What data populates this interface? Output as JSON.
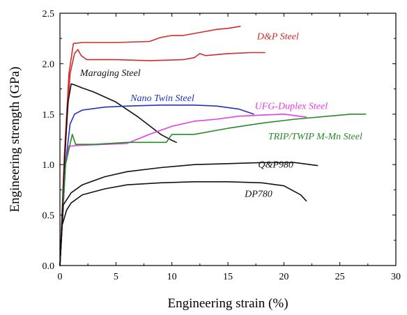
{
  "chart_data": {
    "type": "line",
    "title": "",
    "xlabel": "Engineering strain (%)",
    "ylabel": "Engineering strength (GPa)",
    "xlim": [
      0,
      30
    ],
    "ylim": [
      0.0,
      2.5
    ],
    "x_ticks": [
      "0",
      "5",
      "10",
      "15",
      "20",
      "25",
      "30"
    ],
    "y_ticks": [
      "0.0",
      "0.5",
      "1.0",
      "1.5",
      "2.0",
      "2.5"
    ],
    "grid": false,
    "legend": "inline labels",
    "series": [
      {
        "name": "D&P Steel",
        "color": "#d42a2a",
        "label_at": [
          17.6,
          2.24
        ],
        "points": [
          [
            0,
            0
          ],
          [
            0.4,
            1.1
          ],
          [
            0.8,
            1.9
          ],
          [
            1.2,
            2.2
          ],
          [
            2,
            2.21
          ],
          [
            5,
            2.21
          ],
          [
            8,
            2.22
          ],
          [
            9,
            2.26
          ],
          [
            10,
            2.28
          ],
          [
            11,
            2.28
          ],
          [
            12,
            2.3
          ],
          [
            13,
            2.32
          ],
          [
            14,
            2.34
          ],
          [
            15,
            2.35
          ],
          [
            16.1,
            2.37
          ]
        ]
      },
      {
        "name": "D&P Steel",
        "color": "#d42a2a",
        "label_at": null,
        "points": [
          [
            0,
            0
          ],
          [
            0.5,
            1.2
          ],
          [
            0.9,
            1.9
          ],
          [
            1.3,
            2.1
          ],
          [
            1.6,
            2.14
          ],
          [
            1.9,
            2.08
          ],
          [
            2.4,
            2.04
          ],
          [
            5,
            2.04
          ],
          [
            8,
            2.03
          ],
          [
            11,
            2.04
          ],
          [
            12,
            2.06
          ],
          [
            12.5,
            2.1
          ],
          [
            13,
            2.08
          ],
          [
            15,
            2.1
          ],
          [
            17,
            2.11
          ],
          [
            18.3,
            2.11
          ]
        ]
      },
      {
        "name": "Maraging Steel",
        "color": "#111111",
        "label_at": [
          1.8,
          1.88
        ],
        "points": [
          [
            0,
            0
          ],
          [
            0.4,
            1.0
          ],
          [
            0.7,
            1.6
          ],
          [
            1.0,
            1.8
          ],
          [
            1.3,
            1.79
          ],
          [
            2,
            1.76
          ],
          [
            3,
            1.72
          ],
          [
            5,
            1.62
          ],
          [
            7,
            1.47
          ],
          [
            9,
            1.3
          ],
          [
            10,
            1.24
          ],
          [
            10.4,
            1.22
          ]
        ]
      },
      {
        "name": "Nano Twin Steel",
        "color": "#2233bb",
        "label_at": [
          6.3,
          1.63
        ],
        "points": [
          [
            0,
            0
          ],
          [
            0.5,
            1.0
          ],
          [
            0.9,
            1.4
          ],
          [
            1.3,
            1.5
          ],
          [
            2,
            1.54
          ],
          [
            4,
            1.57
          ],
          [
            6,
            1.58
          ],
          [
            9,
            1.59
          ],
          [
            12,
            1.59
          ],
          [
            14,
            1.58
          ],
          [
            16,
            1.55
          ],
          [
            17.3,
            1.5
          ]
        ]
      },
      {
        "name": "UFG-Duplex Steel",
        "color": "#e63ce6",
        "label_at": [
          17.4,
          1.55
        ],
        "points": [
          [
            0,
            0
          ],
          [
            0.5,
            1.0
          ],
          [
            0.8,
            1.18
          ],
          [
            1.5,
            1.19
          ],
          [
            4,
            1.2
          ],
          [
            6,
            1.21
          ],
          [
            8,
            1.3
          ],
          [
            10,
            1.38
          ],
          [
            12,
            1.43
          ],
          [
            14,
            1.45
          ],
          [
            16,
            1.48
          ],
          [
            18,
            1.49
          ],
          [
            20,
            1.5
          ],
          [
            22,
            1.47
          ]
        ]
      },
      {
        "name": "TRIP/TWIP M-Mn Steel",
        "color": "#2a8a2a",
        "label_at": [
          18.6,
          1.25
        ],
        "points": [
          [
            0,
            0
          ],
          [
            0.5,
            1.0
          ],
          [
            0.9,
            1.2
          ],
          [
            1.1,
            1.3
          ],
          [
            1.4,
            1.2
          ],
          [
            3,
            1.2
          ],
          [
            6,
            1.22
          ],
          [
            9.5,
            1.22
          ],
          [
            10,
            1.3
          ],
          [
            12,
            1.3
          ],
          [
            15,
            1.36
          ],
          [
            18,
            1.41
          ],
          [
            21,
            1.45
          ],
          [
            24,
            1.48
          ],
          [
            26,
            1.5
          ],
          [
            27.3,
            1.5
          ]
        ]
      },
      {
        "name": "Q&P980",
        "color": "#111111",
        "label_at": [
          17.7,
          0.97
        ],
        "points": [
          [
            0,
            0
          ],
          [
            0.3,
            0.6
          ],
          [
            1,
            0.72
          ],
          [
            2,
            0.8
          ],
          [
            4,
            0.88
          ],
          [
            6,
            0.93
          ],
          [
            9,
            0.97
          ],
          [
            12,
            1.0
          ],
          [
            15,
            1.01
          ],
          [
            18,
            1.02
          ],
          [
            21,
            1.02
          ],
          [
            23,
            0.99
          ]
        ]
      },
      {
        "name": "DP780",
        "color": "#111111",
        "label_at": [
          16.5,
          0.68
        ],
        "points": [
          [
            0,
            0
          ],
          [
            0.2,
            0.4
          ],
          [
            0.6,
            0.55
          ],
          [
            1,
            0.62
          ],
          [
            2,
            0.7
          ],
          [
            4,
            0.76
          ],
          [
            6,
            0.8
          ],
          [
            9,
            0.82
          ],
          [
            12,
            0.83
          ],
          [
            15,
            0.83
          ],
          [
            18,
            0.82
          ],
          [
            20,
            0.79
          ],
          [
            21.5,
            0.7
          ],
          [
            22,
            0.64
          ]
        ]
      }
    ]
  }
}
